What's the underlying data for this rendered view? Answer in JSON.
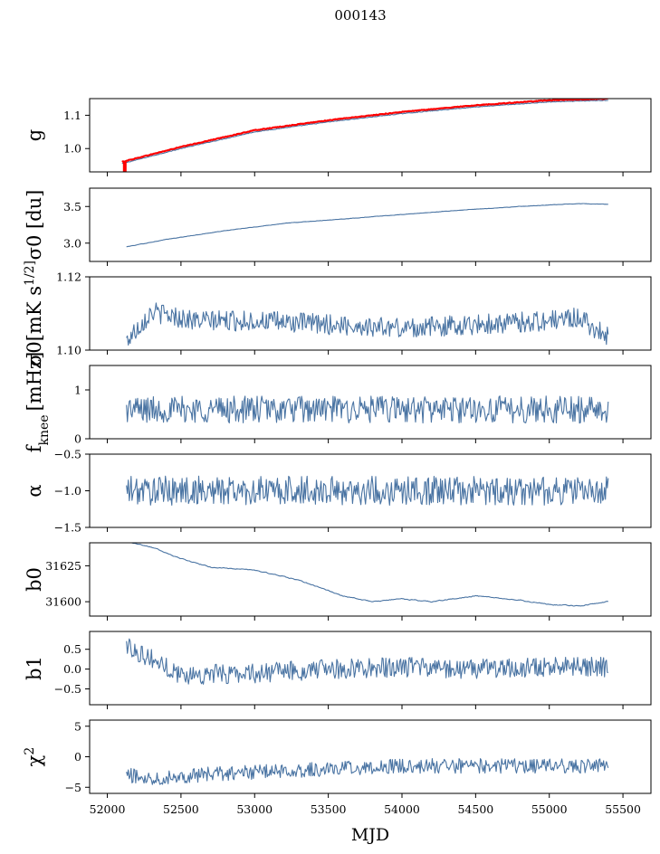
{
  "suptitle": "000143",
  "xlabel": "MJD",
  "x_ticks": [
    52000,
    52500,
    53000,
    53500,
    54000,
    54500,
    55000,
    55500
  ],
  "xlim": [
    51880,
    55690
  ],
  "colors": {
    "line": "#4a74a3",
    "highlight": "#ff0000",
    "frame": "#000000"
  },
  "chart_data": [
    {
      "type": "line",
      "ylabel": "g",
      "ylim": [
        0.93,
        1.15
      ],
      "yticks": [
        1.0,
        1.1
      ],
      "ytick_labels": [
        "1.0",
        "1.1"
      ],
      "series": [
        {
          "x": [
            52100,
            52500,
            53000,
            53500,
            54000,
            54500,
            55000,
            55400
          ],
          "values": [
            0.955,
            1.0,
            1.05,
            1.08,
            1.105,
            1.125,
            1.14,
            1.145
          ]
        },
        {
          "x": [
            52100,
            52500,
            53000,
            53500,
            54000,
            54500,
            55000,
            55400
          ],
          "values": [
            0.96,
            1.005,
            1.055,
            1.085,
            1.11,
            1.13,
            1.145,
            1.15
          ],
          "color": "highlight"
        }
      ]
    },
    {
      "type": "line",
      "ylabel": "σ0 [du]",
      "ylim": [
        2.75,
        3.75
      ],
      "yticks": [
        3.0,
        3.5
      ],
      "ytick_labels": [
        "3.0",
        "3.5"
      ],
      "series": [
        {
          "x": [
            52130,
            52400,
            52800,
            53200,
            53600,
            54000,
            54400,
            54800,
            55200,
            55400
          ],
          "values": [
            2.95,
            3.05,
            3.17,
            3.27,
            3.33,
            3.39,
            3.45,
            3.5,
            3.54,
            3.53
          ]
        }
      ]
    },
    {
      "type": "line",
      "ylabel": "σ0[mK s^1/2]",
      "ylim": [
        1.1,
        1.12
      ],
      "yticks": [
        1.1,
        1.12
      ],
      "ytick_labels": [
        "1.10",
        "1.12"
      ],
      "series": [
        {
          "x": [
            52130,
            52300,
            52600,
            53000,
            53500,
            54000,
            54500,
            55000,
            55200,
            55400
          ],
          "values": [
            1.1025,
            1.1105,
            1.108,
            1.108,
            1.107,
            1.106,
            1.107,
            1.108,
            1.109,
            1.1035
          ]
        }
      ]
    },
    {
      "type": "line",
      "ylabel": "f_knee [mHz]",
      "ylim": [
        0,
        1.5
      ],
      "yticks": [
        0,
        1
      ],
      "ytick_labels": [
        "0",
        "1"
      ],
      "series": [
        {
          "x": [
            52130,
            55400
          ],
          "values": [
            0.6,
            0.6
          ]
        }
      ]
    },
    {
      "type": "line",
      "ylabel": "α",
      "ylim": [
        -1.5,
        -0.5
      ],
      "yticks": [
        -1.5,
        -1.0,
        -0.5
      ],
      "ytick_labels": [
        "−1.5",
        "−1.0",
        "−0.5"
      ],
      "series": [
        {
          "x": [
            52130,
            55400
          ],
          "values": [
            -1.0,
            -1.0
          ]
        }
      ]
    },
    {
      "type": "line",
      "ylabel": "b0",
      "ylim": [
        31590,
        31641
      ],
      "yticks": [
        31600,
        31625
      ],
      "ytick_labels": [
        "31600",
        "31625"
      ],
      "series": [
        {
          "x": [
            52130,
            52300,
            52500,
            52700,
            53000,
            53300,
            53600,
            53800,
            54000,
            54200,
            54500,
            54800,
            55000,
            55200,
            55400
          ],
          "values": [
            31642,
            31638,
            31630,
            31624,
            31622,
            31615,
            31604,
            31600,
            31602,
            31600,
            31604,
            31601,
            31598,
            31597,
            31600
          ]
        }
      ]
    },
    {
      "type": "line",
      "ylabel": "b1",
      "ylim": [
        -0.9,
        0.95
      ],
      "yticks": [
        -0.5,
        0.0,
        0.5
      ],
      "ytick_labels": [
        "−0.5",
        "0.0",
        "0.5"
      ],
      "series": [
        {
          "x": [
            52130,
            52500,
            53000,
            53500,
            54000,
            54500,
            55000,
            55400
          ],
          "values": [
            0.6,
            -0.15,
            -0.1,
            0.0,
            0.05,
            0.0,
            0.05,
            0.05
          ]
        }
      ]
    },
    {
      "type": "line",
      "ylabel": "χ^2",
      "ylim": [
        -6,
        6
      ],
      "yticks": [
        -5,
        0,
        5
      ],
      "ytick_labels": [
        "−5",
        "0",
        "5"
      ],
      "series": [
        {
          "x": [
            52130,
            52300,
            52600,
            53000,
            53500,
            54000,
            54500,
            55000,
            55400
          ],
          "values": [
            -3,
            -3.5,
            -3,
            -2.5,
            -2,
            -1.5,
            -1.5,
            -1.5,
            -1.5
          ]
        }
      ]
    }
  ]
}
